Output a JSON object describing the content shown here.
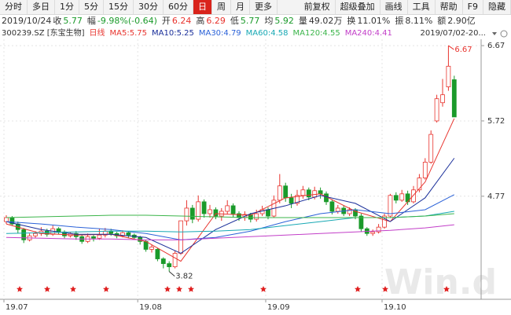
{
  "toolbar": {
    "tabs": [
      "分时",
      "多日",
      "1分",
      "5分",
      "15分",
      "30分",
      "60分",
      "日",
      "周",
      "月",
      "更多"
    ],
    "selected": "日",
    "tools": [
      "前复权",
      "超级叠加",
      "画线",
      "工具",
      "帮助",
      "F9",
      "隐藏"
    ]
  },
  "quote": {
    "date": "2019/10/24",
    "items": [
      {
        "label": "收",
        "value": "5.77",
        "color": "#1a9a2a"
      },
      {
        "label": "幅",
        "value": "-9.98%(-0.64)",
        "color": "#1a9a2a"
      },
      {
        "label": "开",
        "value": "6.24",
        "color": "#e8342e"
      },
      {
        "label": "高",
        "value": "6.29",
        "color": "#e8342e"
      },
      {
        "label": "低",
        "value": "5.77",
        "color": "#1a9a2a"
      },
      {
        "label": "均",
        "value": "5.92",
        "color": "#1a9a2a"
      },
      {
        "label": "量",
        "value": "49.02万",
        "color": "#333333"
      },
      {
        "label": "换",
        "value": "11.01%",
        "color": "#333333"
      },
      {
        "label": "振",
        "value": "8.11%",
        "color": "#333333"
      },
      {
        "label": "额",
        "value": "2.90亿",
        "color": "#333333"
      }
    ]
  },
  "legend": {
    "security": "300239.SZ [东宝生物]",
    "period": "日线",
    "range": "2019/07/02-20..."
  },
  "watermark": "Win.d",
  "chart_data": {
    "type": "candlestick",
    "up_color": "#e8342e",
    "down_color": "#1a9a2a",
    "categories": [
      "19.07",
      null,
      null,
      null,
      null,
      null,
      null,
      null,
      null,
      null,
      null,
      null,
      null,
      null,
      null,
      null,
      null,
      null,
      null,
      null,
      null,
      null,
      null,
      "19.08",
      null,
      null,
      null,
      null,
      null,
      null,
      null,
      null,
      null,
      null,
      null,
      null,
      null,
      null,
      null,
      null,
      null,
      null,
      null,
      null,
      null,
      "19.09",
      null,
      null,
      null,
      null,
      null,
      null,
      null,
      null,
      null,
      null,
      null,
      null,
      null,
      null,
      null,
      null,
      null,
      null,
      null,
      "19.10",
      null,
      null,
      null,
      null,
      null,
      null,
      null,
      null,
      null,
      null,
      null,
      null
    ],
    "open": [
      4.45,
      4.5,
      4.42,
      4.35,
      4.22,
      4.27,
      4.3,
      4.33,
      4.29,
      4.36,
      4.32,
      4.27,
      4.3,
      4.26,
      4.2,
      4.26,
      4.24,
      4.28,
      4.33,
      4.3,
      4.27,
      4.31,
      4.28,
      4.25,
      4.2,
      4.1,
      4.1,
      3.98,
      3.92,
      3.88,
      4.05,
      4.46,
      4.62,
      4.48,
      4.7,
      4.55,
      4.6,
      4.52,
      4.58,
      4.65,
      4.55,
      4.5,
      4.54,
      4.48,
      4.55,
      4.6,
      4.52,
      4.72,
      4.9,
      4.75,
      4.68,
      4.78,
      4.85,
      4.76,
      4.84,
      4.8,
      4.7,
      4.58,
      4.62,
      4.55,
      4.6,
      4.52,
      4.36,
      4.3,
      4.32,
      4.38,
      4.52,
      4.78,
      4.72,
      4.8,
      4.7,
      4.85,
      5.0,
      5.2,
      5.72,
      5.95,
      6.15,
      6.24
    ],
    "high": [
      4.53,
      4.52,
      4.45,
      4.37,
      4.3,
      4.33,
      4.38,
      4.36,
      4.4,
      4.38,
      4.34,
      4.32,
      4.33,
      4.28,
      4.3,
      4.28,
      4.36,
      4.37,
      4.36,
      4.32,
      4.34,
      4.33,
      4.3,
      4.27,
      4.22,
      4.16,
      4.12,
      4.0,
      3.95,
      4.08,
      4.46,
      4.72,
      4.66,
      4.78,
      4.73,
      4.66,
      4.63,
      4.62,
      4.72,
      4.68,
      4.58,
      4.58,
      4.56,
      4.6,
      4.65,
      4.63,
      4.78,
      5.05,
      4.94,
      4.8,
      4.85,
      4.9,
      4.88,
      4.89,
      4.88,
      4.83,
      4.73,
      4.66,
      4.65,
      4.63,
      4.62,
      4.55,
      4.38,
      4.35,
      4.42,
      4.55,
      4.8,
      4.82,
      4.85,
      4.84,
      4.9,
      5.05,
      5.25,
      5.6,
      6.05,
      6.25,
      6.67,
      6.29
    ],
    "low": [
      4.42,
      4.4,
      4.3,
      4.18,
      4.2,
      4.24,
      4.27,
      4.26,
      4.27,
      4.29,
      4.24,
      4.25,
      4.22,
      4.17,
      4.18,
      4.2,
      4.22,
      4.25,
      4.27,
      4.24,
      4.25,
      4.24,
      4.22,
      4.16,
      4.07,
      4.06,
      3.95,
      3.86,
      3.82,
      3.86,
      4.03,
      4.4,
      4.43,
      4.45,
      4.5,
      4.5,
      4.48,
      4.46,
      4.54,
      4.5,
      4.46,
      4.46,
      4.44,
      4.45,
      4.52,
      4.48,
      4.5,
      4.68,
      4.7,
      4.62,
      4.65,
      4.74,
      4.72,
      4.73,
      4.74,
      4.66,
      4.54,
      4.55,
      4.52,
      4.52,
      4.48,
      4.32,
      4.27,
      4.27,
      4.3,
      4.36,
      4.5,
      4.68,
      4.7,
      4.66,
      4.68,
      4.82,
      4.98,
      5.18,
      5.7,
      5.9,
      6.1,
      5.77
    ],
    "close": [
      4.5,
      4.42,
      4.35,
      4.22,
      4.27,
      4.3,
      4.33,
      4.29,
      4.36,
      4.32,
      4.27,
      4.3,
      4.26,
      4.2,
      4.26,
      4.24,
      4.28,
      4.33,
      4.3,
      4.27,
      4.31,
      4.28,
      4.25,
      4.2,
      4.1,
      4.13,
      3.98,
      3.92,
      3.88,
      4.05,
      4.46,
      4.62,
      4.48,
      4.7,
      4.55,
      4.6,
      4.52,
      4.58,
      4.65,
      4.55,
      4.5,
      4.54,
      4.48,
      4.55,
      4.6,
      4.52,
      4.72,
      4.9,
      4.75,
      4.68,
      4.78,
      4.85,
      4.76,
      4.84,
      4.8,
      4.7,
      4.58,
      4.62,
      4.55,
      4.6,
      4.52,
      4.36,
      4.3,
      4.32,
      4.38,
      4.52,
      4.78,
      4.72,
      4.8,
      4.7,
      4.85,
      5.0,
      5.2,
      5.55,
      6.0,
      6.05,
      6.41,
      5.77
    ],
    "series": [
      {
        "name": "MA5:5.75",
        "color": "#e8342e",
        "x": [
          0,
          6,
          12,
          18,
          24,
          30,
          36,
          42,
          48,
          54,
          60,
          66,
          72,
          77
        ],
        "values": [
          4.42,
          4.3,
          4.28,
          4.29,
          4.2,
          3.95,
          4.55,
          4.53,
          4.75,
          4.8,
          4.58,
          4.45,
          4.95,
          5.75
        ]
      },
      {
        "name": "MA10:5.25",
        "color": "#1a2f9a",
        "x": [
          0,
          6,
          12,
          18,
          24,
          30,
          36,
          42,
          48,
          54,
          60,
          66,
          72,
          77
        ],
        "values": [
          4.45,
          4.35,
          4.29,
          4.29,
          4.25,
          4.05,
          4.35,
          4.55,
          4.65,
          4.78,
          4.68,
          4.45,
          4.75,
          5.25
        ]
      },
      {
        "name": "MA30:4.79",
        "color": "#2b62d8",
        "x": [
          0,
          6,
          12,
          18,
          24,
          30,
          36,
          42,
          48,
          54,
          60,
          66,
          72,
          77
        ],
        "values": [
          4.45,
          4.42,
          4.38,
          4.35,
          4.3,
          4.22,
          4.25,
          4.33,
          4.45,
          4.55,
          4.6,
          4.55,
          4.6,
          4.79
        ]
      },
      {
        "name": "MA60:4.58",
        "color": "#17a8b4",
        "x": [
          0,
          6,
          12,
          18,
          24,
          30,
          36,
          42,
          48,
          54,
          60,
          66,
          72,
          77
        ],
        "values": [
          4.3,
          4.31,
          4.32,
          4.33,
          4.33,
          4.32,
          4.33,
          4.35,
          4.4,
          4.45,
          4.5,
          4.5,
          4.52,
          4.58
        ]
      },
      {
        "name": "MA120:4.55",
        "color": "#3bb54a",
        "x": [
          0,
          6,
          12,
          18,
          24,
          30,
          36,
          42,
          48,
          54,
          60,
          66,
          72,
          77
        ],
        "values": [
          4.5,
          4.51,
          4.52,
          4.53,
          4.53,
          4.52,
          4.51,
          4.5,
          4.5,
          4.5,
          4.5,
          4.5,
          4.52,
          4.55
        ]
      },
      {
        "name": "MA240:4.41",
        "color": "#c23ec8",
        "x": [
          0,
          6,
          12,
          18,
          24,
          30,
          36,
          42,
          48,
          54,
          60,
          66,
          72,
          77
        ],
        "values": [
          4.25,
          4.24,
          4.23,
          4.23,
          4.22,
          4.22,
          4.24,
          4.26,
          4.28,
          4.3,
          4.32,
          4.34,
          4.37,
          4.41
        ]
      }
    ],
    "annotations": [
      {
        "label": "6.67",
        "value": 6.67,
        "at": "high"
      },
      {
        "label": "3.82",
        "value": 3.82,
        "at": "low"
      }
    ],
    "ylim": [
      3.47,
      6.75
    ],
    "yticks": [
      4.77,
      5.72,
      6.67
    ],
    "grid": true
  }
}
